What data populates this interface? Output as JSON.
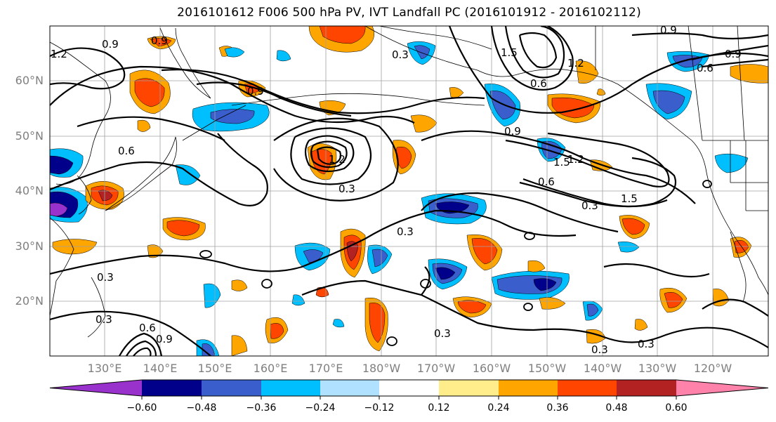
{
  "title": "2016101612 F006 500 hPa PV, IVT Landfall PC (2016101912 - 2016102112)",
  "lat_labels": [
    "20°N",
    "30°N",
    "40°N",
    "50°N",
    "60°N"
  ],
  "lon_labels": [
    "130°E",
    "140°E",
    "150°E",
    "160°E",
    "170°E",
    "180°W",
    "170°W",
    "160°W",
    "150°W",
    "140°W",
    "130°W",
    "120°W"
  ],
  "contour_labels": [
    "1.2",
    "0.9",
    "0.9",
    "0.3",
    "1.5",
    "1.2",
    "0.9",
    "0.6",
    "0.9",
    "0.6",
    "0.9",
    "0.9",
    "1.5",
    "1.2",
    "0.6",
    "0.3",
    "1.5",
    "0.3",
    "0.3",
    "0.3",
    "0.6",
    "0.9",
    "0.3",
    "0.3",
    "0.3",
    "0.3",
    "1.2",
    "0.6"
  ],
  "colorbar": {
    "colors": [
      "#9932cc",
      "#00008b",
      "#3a5fcd",
      "#00bfff",
      "#b0e2ff",
      "#ffffff",
      "#ffec8b",
      "#ffa500",
      "#ff4500",
      "#b22222",
      "#ff82ab"
    ],
    "ticks": [
      "−0.60",
      "−0.48",
      "−0.36",
      "−0.24",
      "−0.12",
      "0.12",
      "0.24",
      "0.36",
      "0.48",
      "0.60"
    ]
  }
}
